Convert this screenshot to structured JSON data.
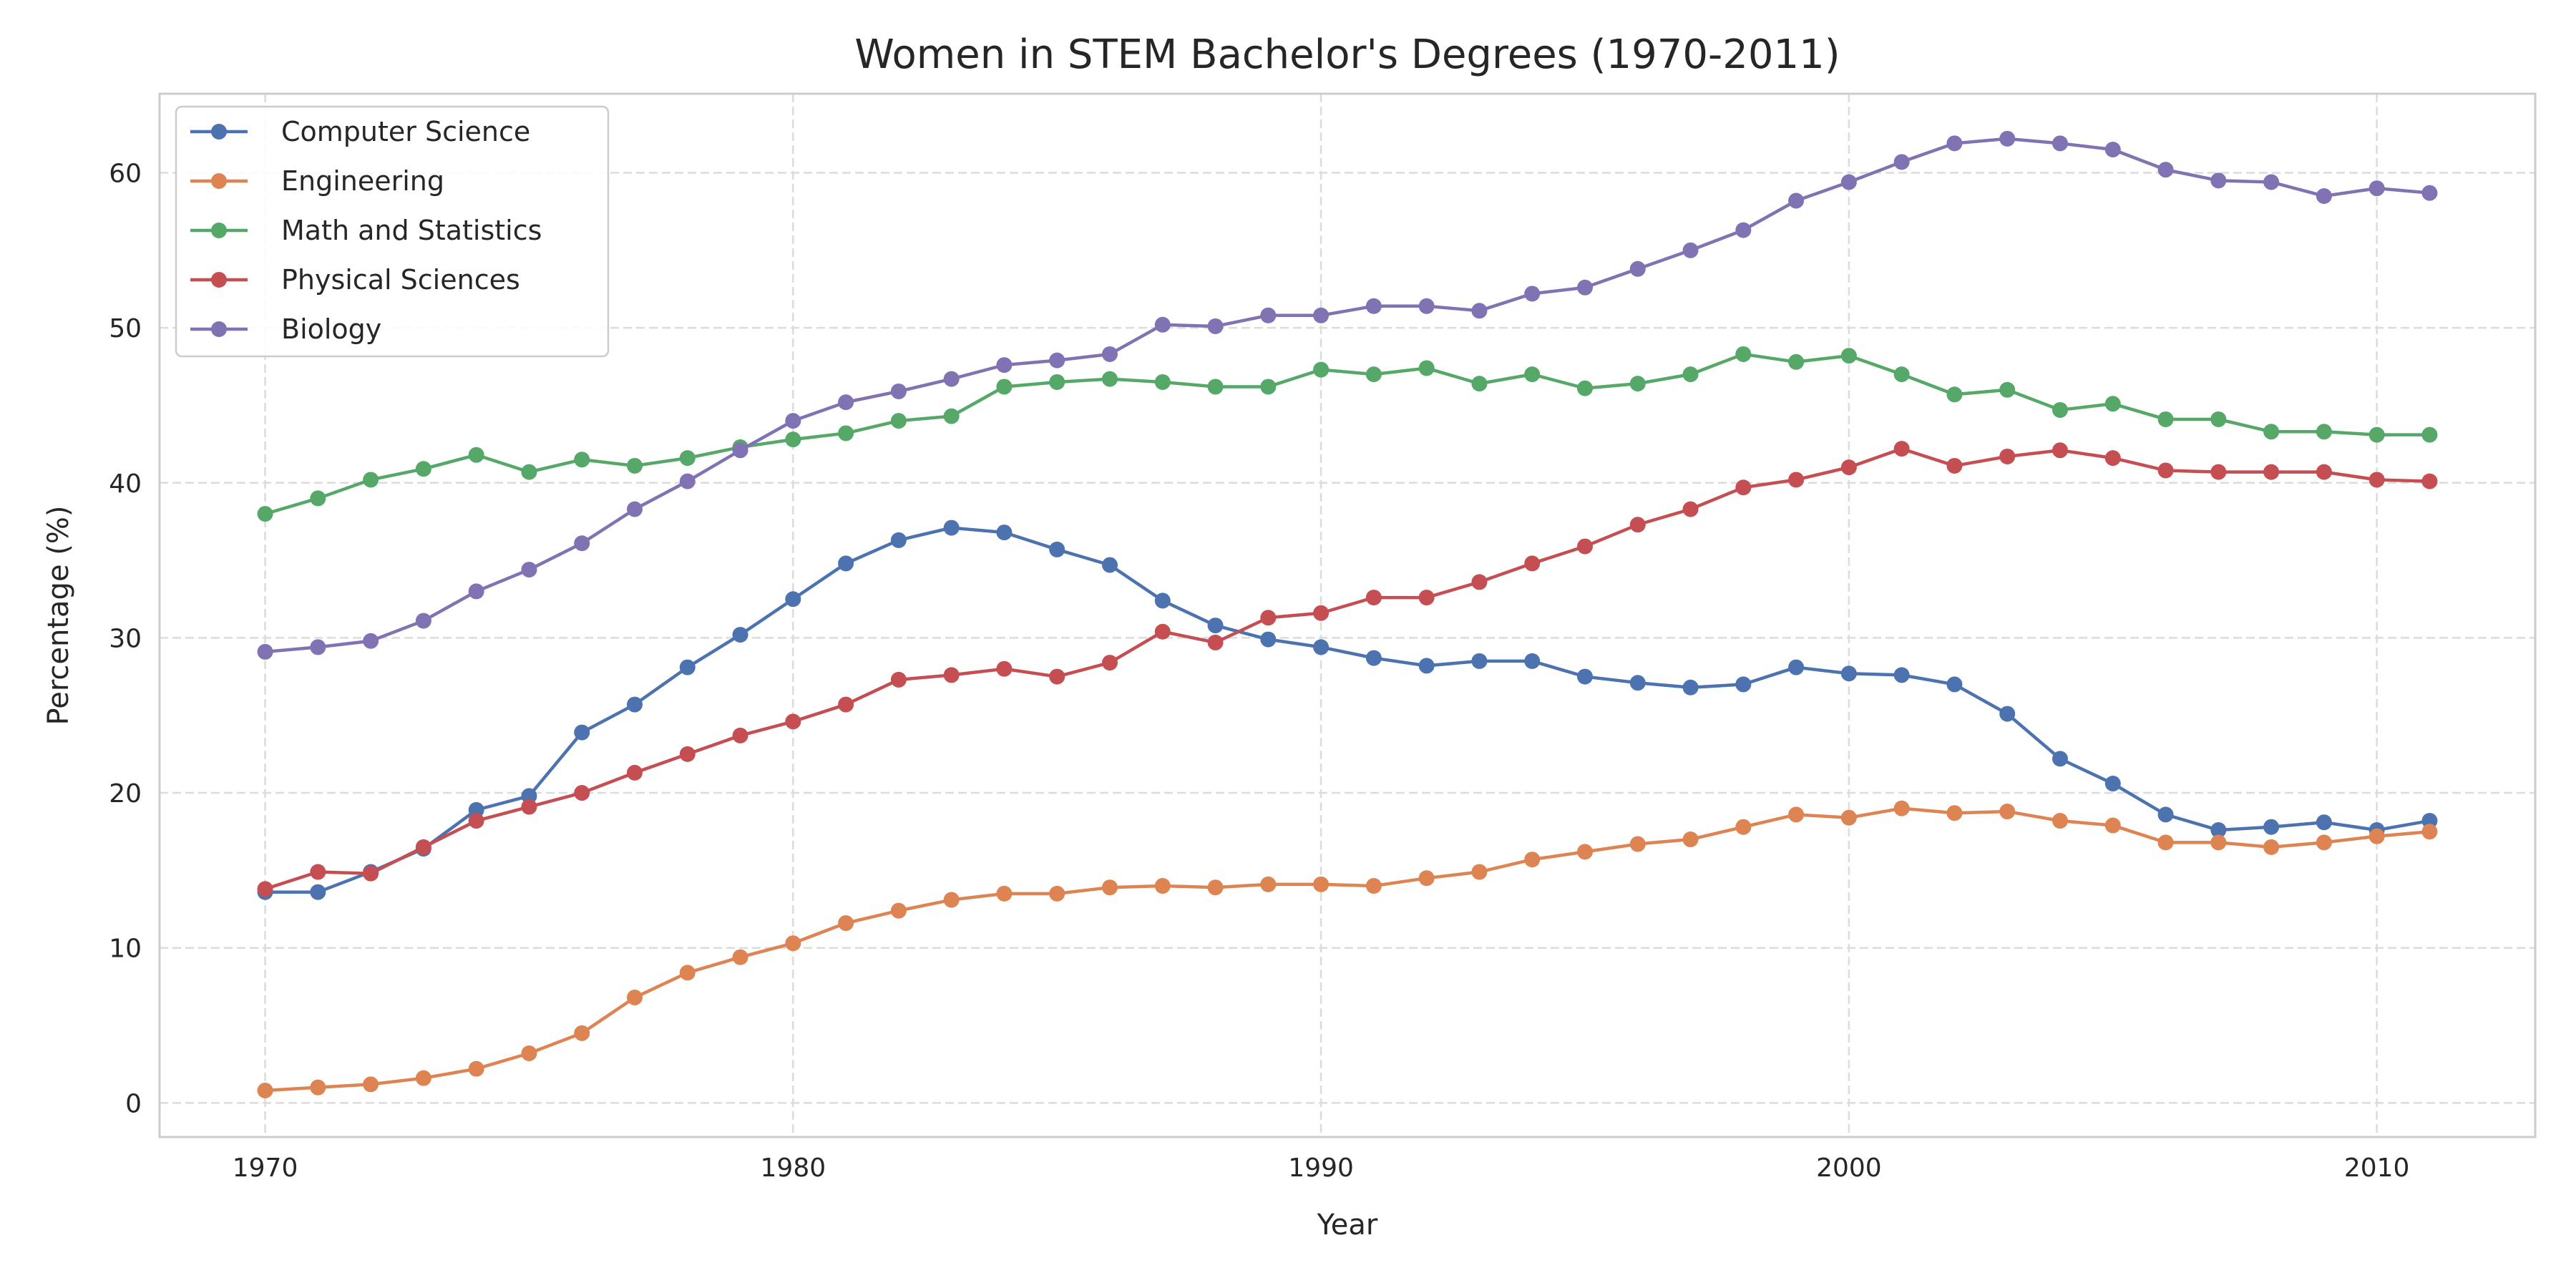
{
  "chart_data": {
    "type": "line",
    "title": "Women in STEM Bachelor's Degrees (1970-2011)",
    "xlabel": "Year",
    "ylabel": "Percentage (%)",
    "xlim": [
      1968,
      2013
    ],
    "ylim": [
      -2.2,
      65.1
    ],
    "xticks": [
      1970,
      1980,
      1990,
      2000,
      2010
    ],
    "yticks": [
      0,
      10,
      20,
      30,
      40,
      50,
      60
    ],
    "grid": true,
    "legend_position": "top-left",
    "markers": true,
    "x": [
      1970,
      1971,
      1972,
      1973,
      1974,
      1975,
      1976,
      1977,
      1978,
      1979,
      1980,
      1981,
      1982,
      1983,
      1984,
      1985,
      1986,
      1987,
      1988,
      1989,
      1990,
      1991,
      1992,
      1993,
      1994,
      1995,
      1996,
      1997,
      1998,
      1999,
      2000,
      2001,
      2002,
      2003,
      2004,
      2005,
      2006,
      2007,
      2008,
      2009,
      2010,
      2011
    ],
    "series": [
      {
        "name": "Computer Science",
        "color": "#4c72b0",
        "values": [
          13.6,
          13.6,
          14.9,
          16.4,
          18.9,
          19.8,
          23.9,
          25.7,
          28.1,
          30.2,
          32.5,
          34.8,
          36.3,
          37.1,
          36.8,
          35.7,
          34.7,
          32.4,
          30.8,
          29.9,
          29.4,
          28.7,
          28.2,
          28.5,
          28.5,
          27.5,
          27.1,
          26.8,
          27.0,
          28.1,
          27.7,
          27.6,
          27.0,
          25.1,
          22.2,
          20.6,
          18.6,
          17.6,
          17.8,
          18.1,
          17.6,
          18.2
        ]
      },
      {
        "name": "Engineering",
        "color": "#dd8452",
        "values": [
          0.8,
          1.0,
          1.2,
          1.6,
          2.2,
          3.2,
          4.5,
          6.8,
          8.4,
          9.4,
          10.3,
          11.6,
          12.4,
          13.1,
          13.5,
          13.5,
          13.9,
          14.0,
          13.9,
          14.1,
          14.1,
          14.0,
          14.5,
          14.9,
          15.7,
          16.2,
          16.7,
          17.0,
          17.8,
          18.6,
          18.4,
          19.0,
          18.7,
          18.8,
          18.2,
          17.9,
          16.8,
          16.8,
          16.5,
          16.8,
          17.2,
          17.5
        ]
      },
      {
        "name": "Math and Statistics",
        "color": "#55a868",
        "values": [
          38.0,
          39.0,
          40.2,
          40.9,
          41.8,
          40.7,
          41.5,
          41.1,
          41.6,
          42.3,
          42.8,
          43.2,
          44.0,
          44.3,
          46.2,
          46.5,
          46.7,
          46.5,
          46.2,
          46.2,
          47.3,
          47.0,
          47.4,
          46.4,
          47.0,
          46.1,
          46.4,
          47.0,
          48.3,
          47.8,
          48.2,
          47.0,
          45.7,
          46.0,
          44.7,
          45.1,
          44.1,
          44.1,
          43.3,
          43.3,
          43.1,
          43.1
        ]
      },
      {
        "name": "Physical Sciences",
        "color": "#c44e52",
        "values": [
          13.8,
          14.9,
          14.8,
          16.5,
          18.2,
          19.1,
          20.0,
          21.3,
          22.5,
          23.7,
          24.6,
          25.7,
          27.3,
          27.6,
          28.0,
          27.5,
          28.4,
          30.4,
          29.7,
          31.3,
          31.6,
          32.6,
          32.6,
          33.6,
          34.8,
          35.9,
          37.3,
          38.3,
          39.7,
          40.2,
          41.0,
          42.2,
          41.1,
          41.7,
          42.1,
          41.6,
          40.8,
          40.7,
          40.7,
          40.7,
          40.2,
          40.1
        ]
      },
      {
        "name": "Biology",
        "color": "#8172b3",
        "values": [
          29.1,
          29.4,
          29.8,
          31.1,
          33.0,
          34.4,
          36.1,
          38.3,
          40.1,
          42.1,
          44.0,
          45.2,
          45.9,
          46.7,
          47.6,
          47.9,
          48.3,
          50.2,
          50.1,
          50.8,
          50.8,
          51.4,
          51.4,
          51.1,
          52.2,
          52.6,
          53.8,
          55.0,
          56.3,
          58.2,
          59.4,
          60.7,
          61.9,
          62.2,
          61.9,
          61.5,
          60.2,
          59.5,
          59.4,
          58.5,
          59.0,
          58.7
        ]
      }
    ]
  }
}
